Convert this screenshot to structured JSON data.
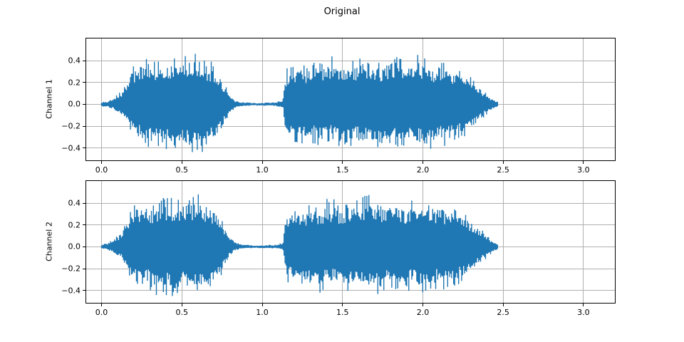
{
  "figure": {
    "title": "Original",
    "background": "#ffffff",
    "line_color": "#1f77b4",
    "grid_color": "#b0b0b0",
    "axis_color": "#000000",
    "text_color": "#000000"
  },
  "chart_data": [
    {
      "type": "line",
      "kind": "audio-waveform",
      "ylabel": "Channel 1",
      "xlabel": "",
      "grid": true,
      "legend": null,
      "xlim": [
        -0.1,
        3.2
      ],
      "ylim": [
        -0.52,
        0.61
      ],
      "xticks": [
        0.0,
        0.5,
        1.0,
        1.5,
        2.0,
        2.5,
        3.0
      ],
      "xtick_labels": [
        "0.0",
        "0.5",
        "1.0",
        "1.5",
        "2.0",
        "2.5",
        "3.0"
      ],
      "yticks": [
        0.4,
        0.2,
        0.0,
        -0.2,
        -0.4
      ],
      "ytick_labels": [
        "0.4",
        "0.2",
        "0.0",
        "−0.2",
        "−0.4"
      ],
      "signal_t_range": [
        0,
        2.47
      ],
      "envelope": [
        [
          0.0,
          0.02,
          -0.02
        ],
        [
          0.04,
          0.03,
          -0.03
        ],
        [
          0.07,
          0.06,
          -0.05
        ],
        [
          0.1,
          0.1,
          -0.08
        ],
        [
          0.13,
          0.14,
          -0.12
        ],
        [
          0.16,
          0.26,
          -0.22
        ],
        [
          0.19,
          0.35,
          -0.3
        ],
        [
          0.22,
          0.4,
          -0.34
        ],
        [
          0.26,
          0.43,
          -0.37
        ],
        [
          0.3,
          0.4,
          -0.39
        ],
        [
          0.34,
          0.38,
          -0.41
        ],
        [
          0.38,
          0.43,
          -0.43
        ],
        [
          0.42,
          0.46,
          -0.44
        ],
        [
          0.45,
          0.43,
          -0.44
        ],
        [
          0.46,
          0.42,
          -0.47
        ],
        [
          0.47,
          0.42,
          -0.43
        ],
        [
          0.5,
          0.44,
          -0.41
        ],
        [
          0.54,
          0.47,
          -0.44
        ],
        [
          0.57,
          0.45,
          -0.43
        ],
        [
          0.58,
          0.52,
          -0.42
        ],
        [
          0.59,
          0.46,
          -0.43
        ],
        [
          0.62,
          0.46,
          -0.46
        ],
        [
          0.65,
          0.41,
          -0.43
        ],
        [
          0.66,
          0.41,
          -0.48
        ],
        [
          0.67,
          0.4,
          -0.43
        ],
        [
          0.7,
          0.37,
          -0.38
        ],
        [
          0.74,
          0.28,
          -0.28
        ],
        [
          0.77,
          0.18,
          -0.17
        ],
        [
          0.8,
          0.09,
          -0.09
        ],
        [
          0.83,
          0.04,
          -0.04
        ],
        [
          0.87,
          0.025,
          -0.02
        ],
        [
          0.95,
          0.012,
          -0.012
        ],
        [
          1.02,
          0.015,
          -0.015
        ],
        [
          1.08,
          0.02,
          -0.015
        ],
        [
          1.11,
          0.03,
          -0.025
        ],
        [
          1.13,
          0.05,
          -0.04
        ],
        [
          1.145,
          0.3,
          -0.28
        ],
        [
          1.17,
          0.36,
          -0.33
        ],
        [
          1.2,
          0.33,
          -0.36
        ],
        [
          1.24,
          0.38,
          -0.34
        ],
        [
          1.28,
          0.35,
          -0.4
        ],
        [
          1.32,
          0.4,
          -0.36
        ],
        [
          1.36,
          0.37,
          -0.41
        ],
        [
          1.4,
          0.42,
          -0.37
        ],
        [
          1.44,
          0.44,
          -0.35
        ],
        [
          1.48,
          0.38,
          -0.42
        ],
        [
          1.52,
          0.41,
          -0.44
        ],
        [
          1.56,
          0.44,
          -0.38
        ],
        [
          1.6,
          0.4,
          -0.36
        ],
        [
          1.63,
          0.46,
          -0.4
        ],
        [
          1.65,
          0.42,
          -0.38
        ],
        [
          1.66,
          0.49,
          -0.37
        ],
        [
          1.67,
          0.42,
          -0.38
        ],
        [
          1.7,
          0.42,
          -0.42
        ],
        [
          1.74,
          0.38,
          -0.44
        ],
        [
          1.78,
          0.44,
          -0.38
        ],
        [
          1.82,
          0.46,
          -0.36
        ],
        [
          1.86,
          0.42,
          -0.4
        ],
        [
          1.9,
          0.38,
          -0.43
        ],
        [
          1.94,
          0.44,
          -0.37
        ],
        [
          1.98,
          0.46,
          -0.41
        ],
        [
          2.02,
          0.4,
          -0.44
        ],
        [
          2.06,
          0.37,
          -0.4
        ],
        [
          2.1,
          0.41,
          -0.35
        ],
        [
          2.14,
          0.38,
          -0.38
        ],
        [
          2.18,
          0.35,
          -0.36
        ],
        [
          2.22,
          0.33,
          -0.33
        ],
        [
          2.26,
          0.3,
          -0.3
        ],
        [
          2.3,
          0.26,
          -0.25
        ],
        [
          2.34,
          0.2,
          -0.19
        ],
        [
          2.38,
          0.13,
          -0.12
        ],
        [
          2.42,
          0.07,
          -0.06
        ],
        [
          2.44,
          0.05,
          -0.05
        ],
        [
          2.465,
          0.03,
          -0.03
        ],
        [
          2.47,
          0.01,
          -0.01
        ]
      ]
    },
    {
      "type": "line",
      "kind": "audio-waveform",
      "ylabel": "Channel 2",
      "xlabel": "",
      "grid": true,
      "legend": null,
      "xlim": [
        -0.1,
        3.2
      ],
      "ylim": [
        -0.52,
        0.61
      ],
      "xticks": [
        0.0,
        0.5,
        1.0,
        1.5,
        2.0,
        2.5,
        3.0
      ],
      "xtick_labels": [
        "0.0",
        "0.5",
        "1.0",
        "1.5",
        "2.0",
        "2.5",
        "3.0"
      ],
      "yticks": [
        0.4,
        0.2,
        0.0,
        -0.2,
        -0.4
      ],
      "ytick_labels": [
        "0.4",
        "0.2",
        "0.0",
        "−0.2",
        "−0.4"
      ],
      "signal_t_range": [
        0,
        2.47
      ],
      "envelope": [
        [
          0.0,
          0.02,
          -0.02
        ],
        [
          0.04,
          0.04,
          -0.03
        ],
        [
          0.07,
          0.07,
          -0.06
        ],
        [
          0.1,
          0.11,
          -0.09
        ],
        [
          0.13,
          0.15,
          -0.13
        ],
        [
          0.16,
          0.27,
          -0.23
        ],
        [
          0.19,
          0.36,
          -0.31
        ],
        [
          0.22,
          0.41,
          -0.35
        ],
        [
          0.26,
          0.44,
          -0.38
        ],
        [
          0.3,
          0.41,
          -0.4
        ],
        [
          0.33,
          0.4,
          -0.41
        ],
        [
          0.34,
          0.39,
          -0.48
        ],
        [
          0.35,
          0.39,
          -0.42
        ],
        [
          0.38,
          0.44,
          -0.43
        ],
        [
          0.42,
          0.45,
          -0.44
        ],
        [
          0.46,
          0.43,
          -0.46
        ],
        [
          0.5,
          0.45,
          -0.42
        ],
        [
          0.54,
          0.46,
          -0.44
        ],
        [
          0.57,
          0.45,
          -0.42
        ],
        [
          0.58,
          0.5,
          -0.43
        ],
        [
          0.6,
          0.51,
          -0.43
        ],
        [
          0.61,
          0.46,
          -0.44
        ],
        [
          0.62,
          0.47,
          -0.47
        ],
        [
          0.66,
          0.42,
          -0.45
        ],
        [
          0.7,
          0.38,
          -0.39
        ],
        [
          0.74,
          0.29,
          -0.29
        ],
        [
          0.77,
          0.19,
          -0.18
        ],
        [
          0.8,
          0.1,
          -0.09
        ],
        [
          0.83,
          0.05,
          -0.04
        ],
        [
          0.87,
          0.025,
          -0.02
        ],
        [
          0.95,
          0.012,
          -0.012
        ],
        [
          1.02,
          0.015,
          -0.015
        ],
        [
          1.08,
          0.02,
          -0.015
        ],
        [
          1.11,
          0.03,
          -0.025
        ],
        [
          1.13,
          0.05,
          -0.04
        ],
        [
          1.145,
          0.31,
          -0.29
        ],
        [
          1.17,
          0.35,
          -0.34
        ],
        [
          1.2,
          0.34,
          -0.36
        ],
        [
          1.24,
          0.39,
          -0.35
        ],
        [
          1.28,
          0.36,
          -0.4
        ],
        [
          1.32,
          0.41,
          -0.37
        ],
        [
          1.36,
          0.38,
          -0.42
        ],
        [
          1.4,
          0.43,
          -0.38
        ],
        [
          1.44,
          0.44,
          -0.36
        ],
        [
          1.48,
          0.39,
          -0.43
        ],
        [
          1.52,
          0.42,
          -0.44
        ],
        [
          1.56,
          0.44,
          -0.39
        ],
        [
          1.6,
          0.41,
          -0.37
        ],
        [
          1.63,
          0.45,
          -0.41
        ],
        [
          1.66,
          0.48,
          -0.38
        ],
        [
          1.7,
          0.43,
          -0.42
        ],
        [
          1.74,
          0.39,
          -0.44
        ],
        [
          1.78,
          0.44,
          -0.39
        ],
        [
          1.82,
          0.45,
          -0.37
        ],
        [
          1.86,
          0.43,
          -0.41
        ],
        [
          1.9,
          0.39,
          -0.43
        ],
        [
          1.94,
          0.44,
          -0.38
        ],
        [
          1.98,
          0.45,
          -0.42
        ],
        [
          2.02,
          0.41,
          -0.44
        ],
        [
          2.06,
          0.38,
          -0.41
        ],
        [
          2.1,
          0.42,
          -0.36
        ],
        [
          2.14,
          0.39,
          -0.39
        ],
        [
          2.18,
          0.36,
          -0.37
        ],
        [
          2.22,
          0.34,
          -0.34
        ],
        [
          2.26,
          0.31,
          -0.31
        ],
        [
          2.3,
          0.27,
          -0.26
        ],
        [
          2.34,
          0.21,
          -0.2
        ],
        [
          2.38,
          0.14,
          -0.13
        ],
        [
          2.42,
          0.08,
          -0.07
        ],
        [
          2.44,
          0.05,
          -0.05
        ],
        [
          2.465,
          0.03,
          -0.03
        ],
        [
          2.47,
          0.01,
          -0.01
        ]
      ]
    }
  ]
}
